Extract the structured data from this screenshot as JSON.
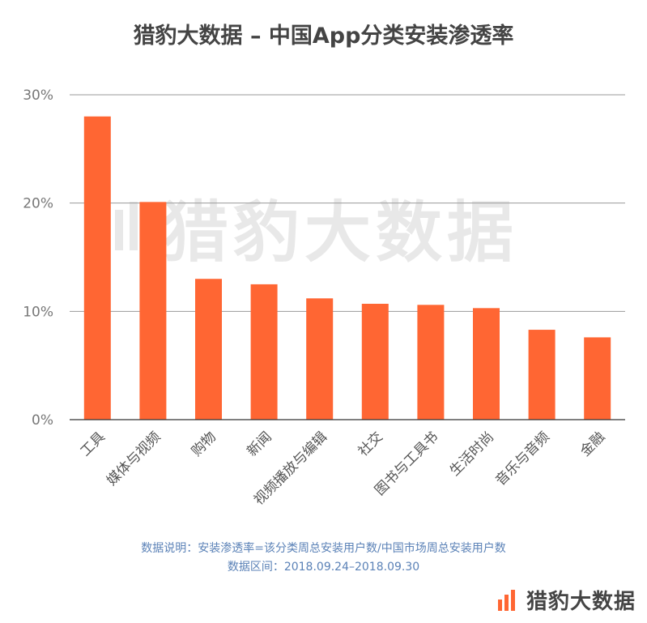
{
  "title": "猎豹大数据 – 中国App分类安装渗透率",
  "chart_data": {
    "type": "bar",
    "categories": [
      "工具",
      "媒体与视频",
      "购物",
      "新闻",
      "视频播放与编辑",
      "社交",
      "图书与工具书",
      "生活时尚",
      "音乐与音频",
      "金融"
    ],
    "values": [
      28.0,
      20.1,
      13.0,
      12.5,
      11.2,
      10.7,
      10.6,
      10.3,
      8.3,
      7.6
    ],
    "ylim": [
      0,
      30
    ],
    "yticks": [
      "0%",
      "10%",
      "20%",
      "30%"
    ],
    "bar_color": "#ff6633",
    "grid": true
  },
  "notes": {
    "line1": "数据说明：安装渗透率=该分类周总安装用户数/中国市场周总安装用户数",
    "line2": "数据区间：2018.09.24–2018.09.30"
  },
  "watermark": {
    "text": "猎豹大数据",
    "icon": "bar-logo-icon"
  },
  "brand": {
    "text": "猎豹大数据",
    "icon": "bar-logo-icon",
    "color": "#ff6633"
  }
}
